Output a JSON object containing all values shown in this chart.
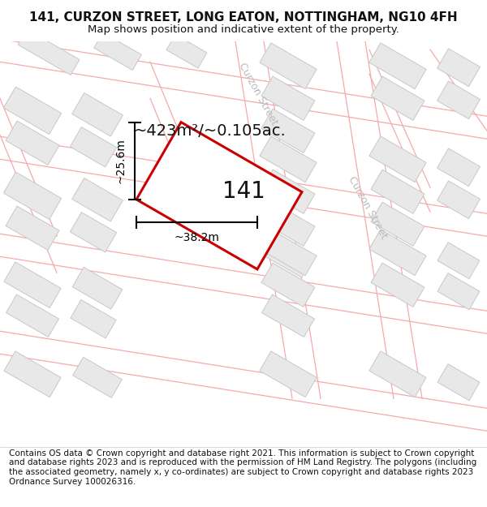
{
  "title_line1": "141, CURZON STREET, LONG EATON, NOTTINGHAM, NG10 4FH",
  "title_line2": "Map shows position and indicative extent of the property.",
  "footer_text": "Contains OS data © Crown copyright and database right 2021. This information is subject to Crown copyright and database rights 2023 and is reproduced with the permission of HM Land Registry. The polygons (including the associated geometry, namely x, y co-ordinates) are subject to Crown copyright and database rights 2023 Ordnance Survey 100026316.",
  "area_label": "~423m²/~0.105ac.",
  "width_label": "~38.2m",
  "height_label": "~25.6m",
  "property_number": "141",
  "bg_color": "#ffffff",
  "map_bg_color": "#f7f7f7",
  "road_color": "#ffffff",
  "building_fill": "#e8e8e8",
  "building_edge": "#c8c8c8",
  "property_fill": "#ffffff",
  "property_stroke": "#cc0000",
  "road_line_color": "#f5aaaa",
  "street_color": "#bbbbbb",
  "dim_color": "#000000",
  "title_fontsize": 11,
  "subtitle_fontsize": 9.5,
  "footer_fontsize": 7.5,
  "area_fontsize": 14,
  "dim_fontsize": 10,
  "street_fontsize": 9,
  "prop_num_fontsize": 20
}
